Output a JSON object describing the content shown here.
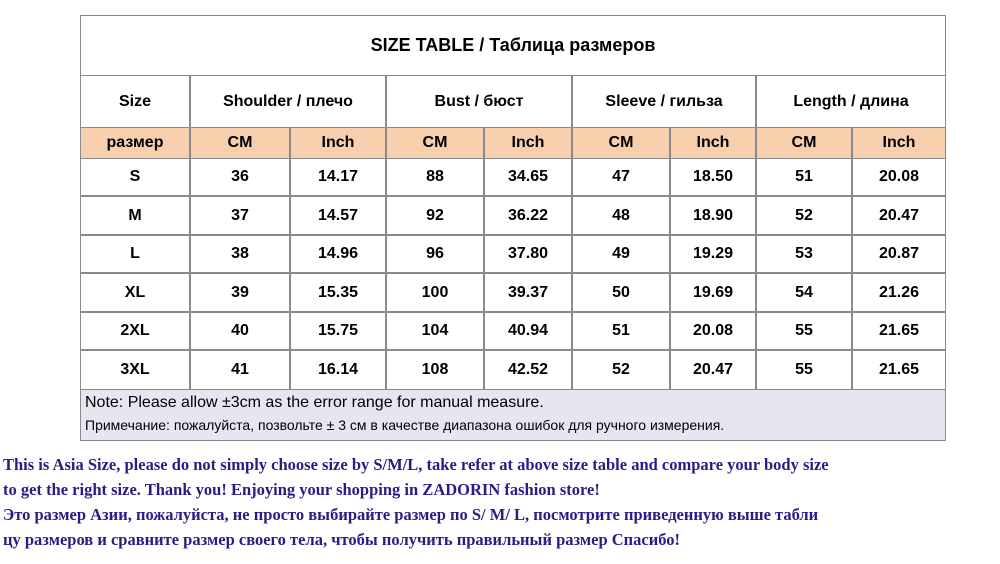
{
  "table": {
    "title": "SIZE TABLE  / Таблица размеров",
    "header": [
      "Size",
      "Shoulder / плечо",
      "Bust / бюст",
      "Sleeve / гильза",
      "Length / длина"
    ],
    "subheader": [
      "размер",
      "CM",
      "Inch",
      "CM",
      "Inch",
      "CM",
      "Inch",
      "CM",
      "Inch"
    ],
    "rows": [
      [
        "S",
        "36",
        "14.17",
        "88",
        "34.65",
        "47",
        "18.50",
        "51",
        "20.08"
      ],
      [
        "M",
        "37",
        "14.57",
        "92",
        "36.22",
        "48",
        "18.90",
        "52",
        "20.47"
      ],
      [
        "L",
        "38",
        "14.96",
        "96",
        "37.80",
        "49",
        "19.29",
        "53",
        "20.87"
      ],
      [
        "XL",
        "39",
        "15.35",
        "100",
        "39.37",
        "50",
        "19.69",
        "54",
        "21.26"
      ],
      [
        "2XL",
        "40",
        "15.75",
        "104",
        "40.94",
        "51",
        "20.08",
        "55",
        "21.65"
      ],
      [
        "3XL",
        "41",
        "16.14",
        "108",
        "42.52",
        "52",
        "20.47",
        "55",
        "21.65"
      ]
    ],
    "note": [
      "Note: Please allow ±3cm as the error range for manual measure.",
      "Примечание: пожалуйста, позвольте ± 3 см в качестве диапазона ошибок для ручного измерения."
    ]
  },
  "description": [
    "This is Asia Size, please do not simply choose size by S/M/L, take refer at above size table and compare your body size",
    "to get the right size. Thank you!  Enjoying your shopping in ZADORIN fashion store!",
    "Это размер Азии, пожалуйста, не просто выбирайте размер по S/ M/ L, посмотрите приведенную выше табли",
    "цу размеров и сравните размер своего тела, чтобы получить правильный размер Спасибо!"
  ]
}
